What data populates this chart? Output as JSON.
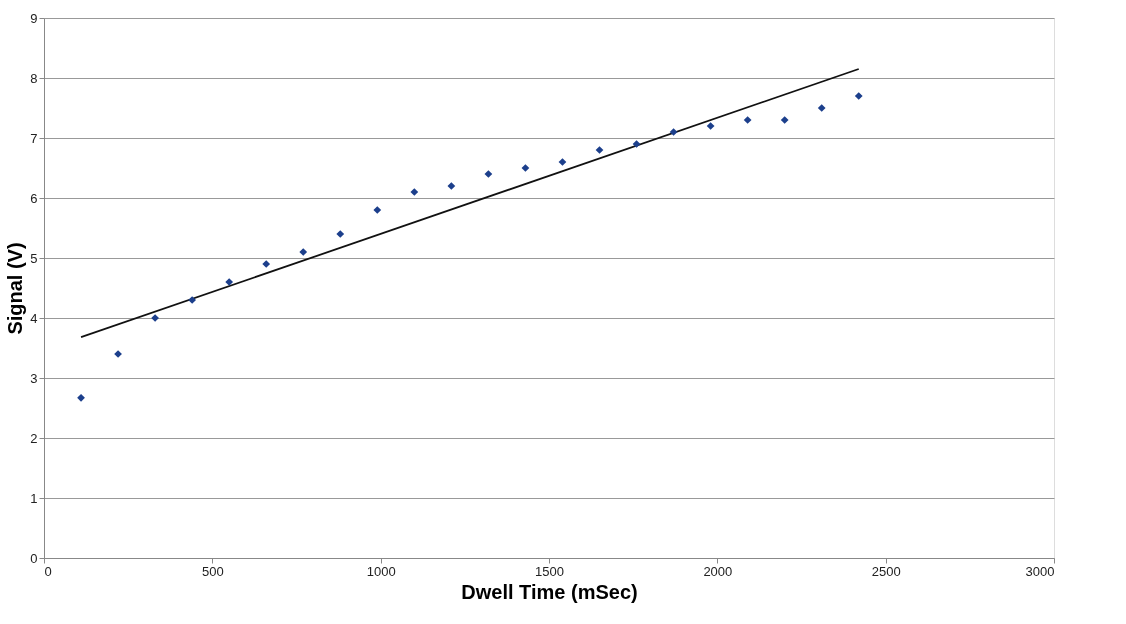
{
  "chart_data": {
    "type": "scatter",
    "xlabel": "Dwell Time (mSec)",
    "ylabel": "Signal (V)",
    "xlim": [
      0,
      3000
    ],
    "xticks": [
      0,
      500,
      1000,
      1500,
      2000,
      2500,
      3000
    ],
    "ylim": [
      0,
      9
    ],
    "yticks": [
      0,
      1,
      2,
      3,
      4,
      5,
      6,
      7,
      8,
      9
    ],
    "grid": "y",
    "series": [
      {
        "marker": "diamond",
        "color": "#1c3f8c",
        "x": [
          110,
          220,
          330,
          440,
          550,
          660,
          770,
          880,
          990,
          1100,
          1210,
          1320,
          1430,
          1540,
          1650,
          1760,
          1870,
          1980,
          2090,
          2200,
          2310,
          2420
        ],
        "values": [
          2.67,
          3.4,
          4.0,
          4.3,
          4.6,
          4.9,
          5.1,
          5.4,
          5.8,
          6.1,
          6.2,
          6.4,
          6.5,
          6.6,
          6.8,
          6.9,
          7.1,
          7.2,
          7.3,
          7.3,
          7.5,
          7.7
        ]
      },
      {
        "type": "line",
        "color": "#111111",
        "x": [
          110,
          2420
        ],
        "values": [
          3.68,
          8.15
        ]
      }
    ]
  }
}
